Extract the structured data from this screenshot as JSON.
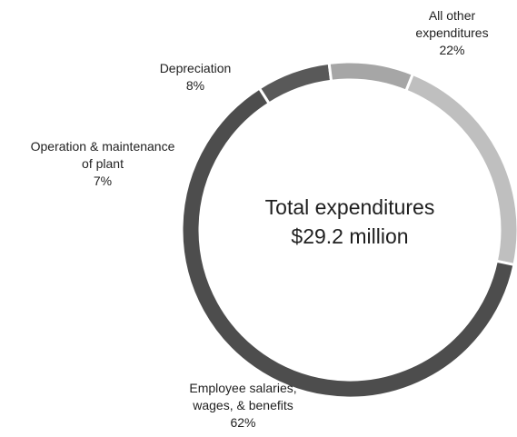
{
  "chart_data": {
    "type": "pie",
    "variant": "donut",
    "center_label": {
      "line1": "Total expenditures",
      "line2": "$29.2 million"
    },
    "slices": [
      {
        "label_lines": [
          "All other",
          "expenditures"
        ],
        "pct_text": "22%",
        "value": 22,
        "color": "#bfbfbf"
      },
      {
        "label_lines": [
          "Employee salaries,",
          "wages, & benefits"
        ],
        "pct_text": "62%",
        "value": 62,
        "color": "#4d4d4d"
      },
      {
        "label_lines": [
          "Operation & maintenance",
          "of plant"
        ],
        "pct_text": "7%",
        "value": 7,
        "color": "#595959"
      },
      {
        "label_lines": [
          "Depreciation"
        ],
        "pct_text": "8%",
        "value": 8,
        "color": "#a6a6a6"
      }
    ],
    "legend": "none"
  }
}
